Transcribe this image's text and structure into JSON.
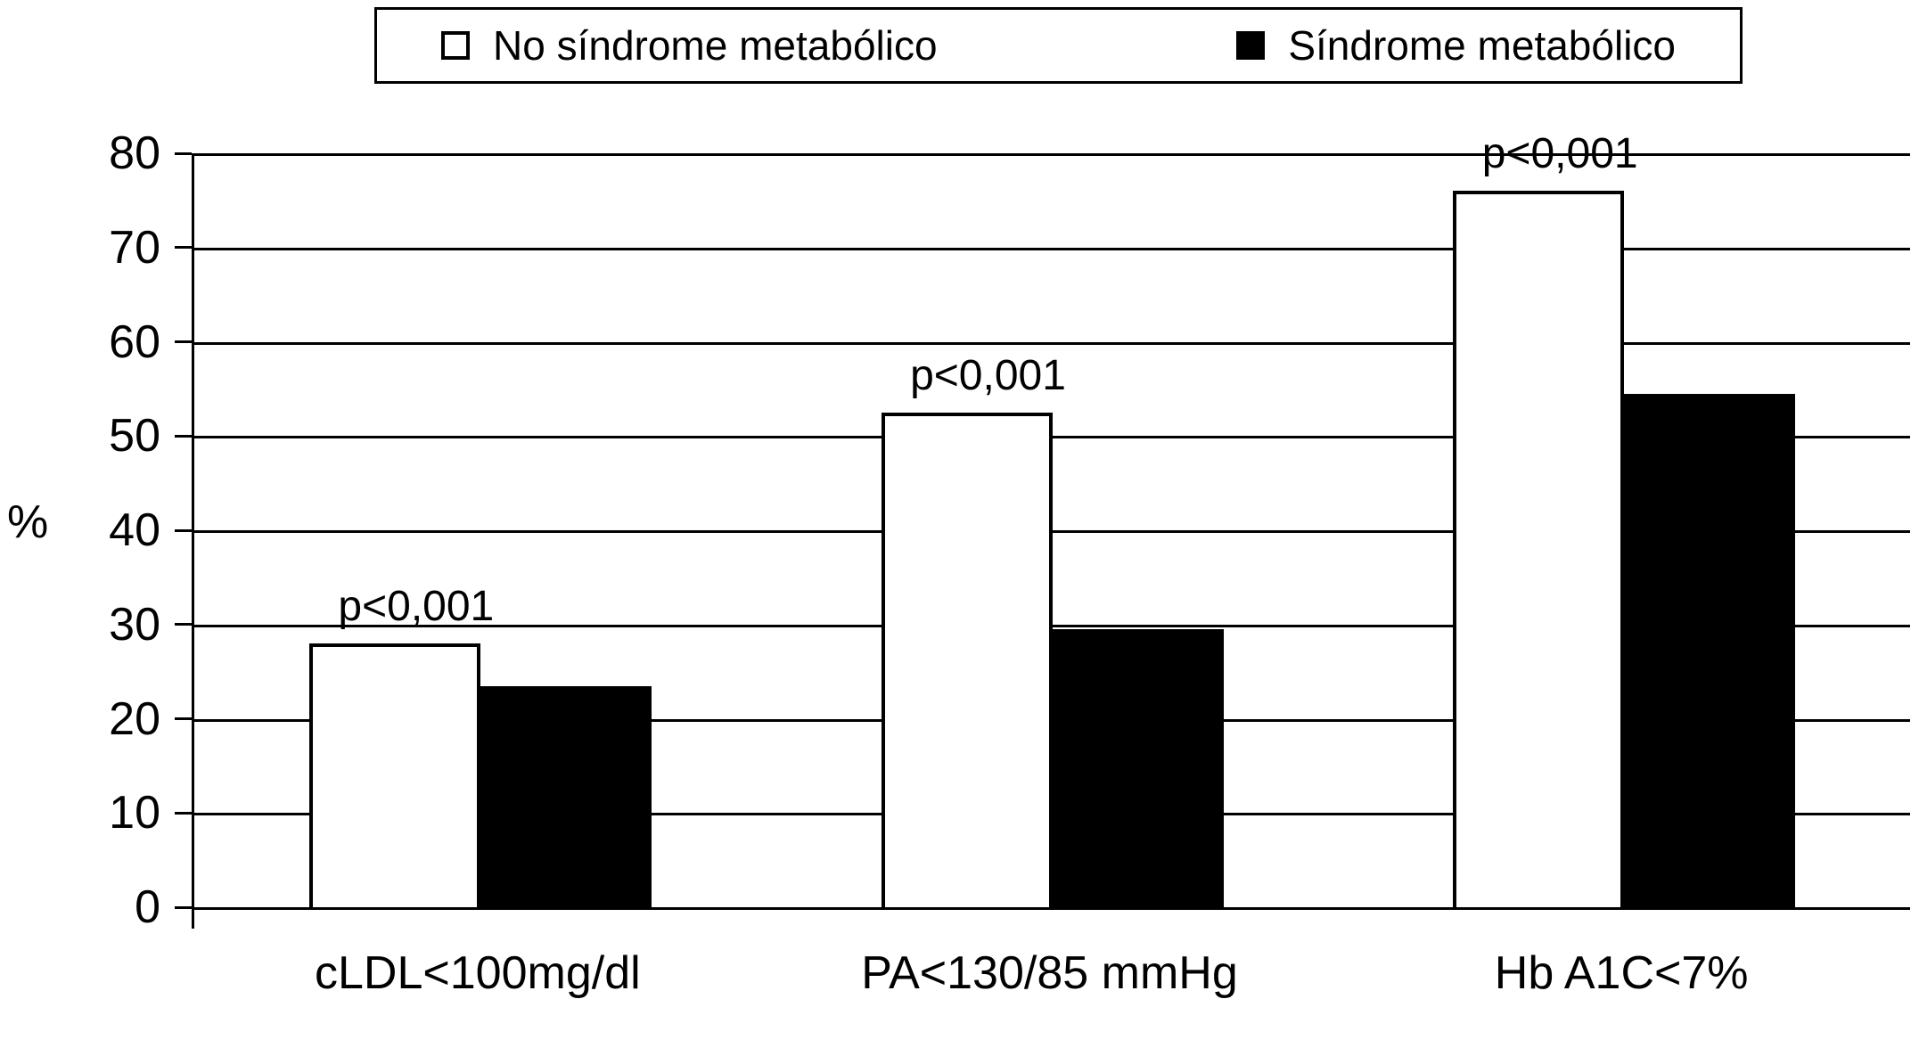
{
  "chart_data": {
    "type": "bar",
    "title": "",
    "xlabel": "",
    "ylabel": "%",
    "ylim": [
      0,
      80
    ],
    "ytick_step": 10,
    "grid": "horizontal",
    "legend_position": "top",
    "categories": [
      "cLDL<100mg/dl",
      "PA<130/85 mmHg",
      "Hb A1C<7%"
    ],
    "series": [
      {
        "name": "No síndrome metabólico",
        "color": "#ffffff",
        "values": [
          28,
          52.5,
          76
        ]
      },
      {
        "name": "Síndrome metabólico",
        "color": "#000000",
        "values": [
          23.5,
          29.5,
          54.5
        ]
      }
    ],
    "annotations": [
      "p<0,001",
      "p<0,001",
      "p<0,001"
    ]
  }
}
